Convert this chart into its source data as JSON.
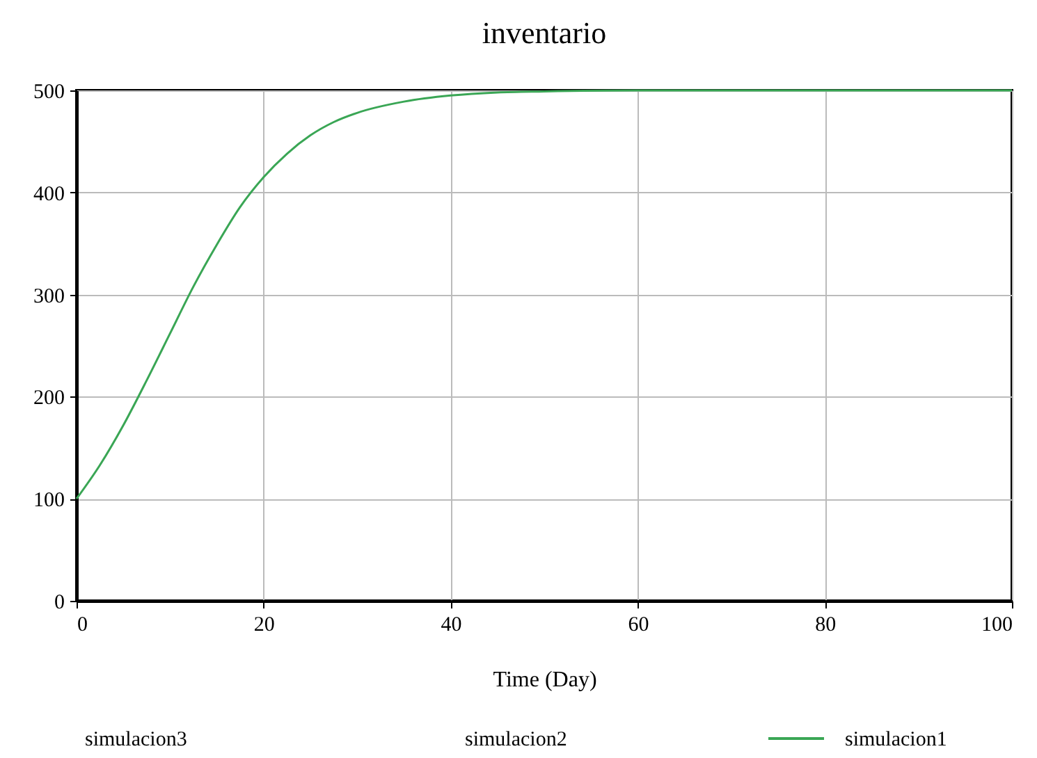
{
  "chart_data": {
    "type": "line",
    "title": "inventario",
    "xlabel": "Time (Day)",
    "x": [
      0,
      2.5,
      5,
      7.5,
      10,
      12.5,
      15,
      17.5,
      20,
      22.5,
      25,
      27.5,
      30,
      35,
      40,
      45,
      50,
      60,
      70,
      80,
      90,
      100
    ],
    "series": [
      {
        "name": "simulacion3",
        "values": [
          null,
          null,
          null,
          null,
          null,
          null,
          null,
          null,
          null,
          null,
          null,
          null,
          null,
          null,
          null,
          null,
          null,
          null,
          null,
          null,
          null,
          null
        ]
      },
      {
        "name": "simulacion2",
        "values": [
          null,
          null,
          null,
          null,
          null,
          null,
          null,
          null,
          null,
          null,
          null,
          null,
          null,
          null,
          null,
          null,
          null,
          null,
          null,
          null,
          null,
          null
        ]
      },
      {
        "name": "simulacion1",
        "color": "#3aa655",
        "values": [
          100,
          133,
          172,
          216,
          262,
          308,
          349,
          386,
          415,
          438,
          456,
          469,
          478,
          489,
          495,
          498,
          499,
          500,
          500,
          500,
          500,
          500
        ]
      }
    ],
    "xlim": [
      0,
      100
    ],
    "xticks": [
      0,
      20,
      40,
      60,
      80,
      100
    ],
    "ylim": [
      0,
      500
    ],
    "yticks": [
      0,
      100,
      200,
      300,
      400,
      500
    ],
    "grid": true,
    "legend": "bottom"
  }
}
